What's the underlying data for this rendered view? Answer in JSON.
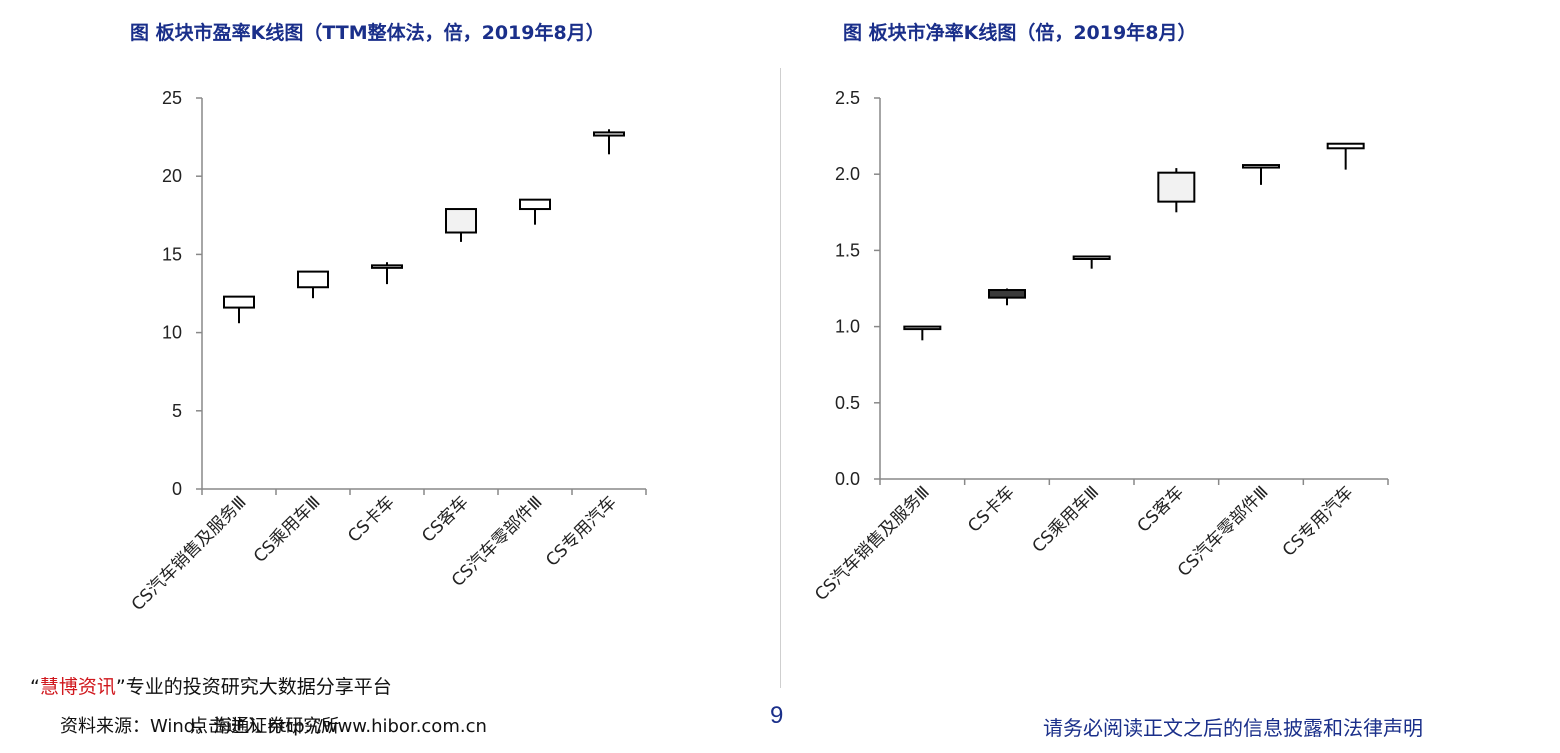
{
  "titles": {
    "left": "图 板块市盈率K线图（TTM整体法，倍，2019年8月）",
    "right": "图 板块市净率K线图（倍，2019年8月）"
  },
  "chart_data": [
    {
      "type": "candlestick",
      "ylim": [
        0,
        25
      ],
      "yticks": [
        "0",
        "5",
        "10",
        "15",
        "20",
        "25"
      ],
      "categories": [
        "CS汽车销售及服务Ⅲ",
        "CS乘用车Ⅲ",
        "CS卡车",
        "CS客车",
        "CS汽车零部件Ⅲ",
        "CS专用汽车"
      ],
      "candles": [
        {
          "open": 11.6,
          "close": 12.3,
          "high": 12.3,
          "low": 10.6,
          "fill": "#ffffff"
        },
        {
          "open": 12.9,
          "close": 13.9,
          "high": 13.9,
          "low": 12.2,
          "fill": "#ffffff"
        },
        {
          "open": 14.2,
          "close": 14.3,
          "high": 14.5,
          "low": 13.1,
          "fill": "#ffffff"
        },
        {
          "open": 16.4,
          "close": 17.9,
          "high": 17.9,
          "low": 15.8,
          "fill": "#f2f2f2"
        },
        {
          "open": 17.9,
          "close": 18.5,
          "high": 18.5,
          "low": 16.9,
          "fill": "#ffffff"
        },
        {
          "open": 22.6,
          "close": 22.8,
          "high": 23.0,
          "low": 21.4,
          "fill": "#ffffff"
        }
      ]
    },
    {
      "type": "candlestick",
      "ylim": [
        0,
        2.5
      ],
      "yticks": [
        "0.0",
        "0.5",
        "1.0",
        "1.5",
        "2.0",
        "2.5"
      ],
      "categories": [
        "CS汽车销售及服务Ⅲ",
        "CS卡车",
        "CS乘用车Ⅲ",
        "CS客车",
        "CS汽车零部件Ⅲ",
        "CS专用汽车"
      ],
      "candles": [
        {
          "open": 0.99,
          "close": 1.0,
          "high": 1.0,
          "low": 0.91,
          "fill": "#ffffff"
        },
        {
          "open": 1.19,
          "close": 1.24,
          "high": 1.25,
          "low": 1.14,
          "fill": "#3a3a3a"
        },
        {
          "open": 1.45,
          "close": 1.46,
          "high": 1.46,
          "low": 1.38,
          "fill": "#ffffff"
        },
        {
          "open": 1.82,
          "close": 2.01,
          "high": 2.04,
          "low": 1.75,
          "fill": "#f2f2f2"
        },
        {
          "open": 2.05,
          "close": 2.06,
          "high": 2.06,
          "low": 1.93,
          "fill": "#ffffff"
        },
        {
          "open": 2.17,
          "close": 2.2,
          "high": 2.2,
          "low": 2.03,
          "fill": "#ffffff"
        }
      ]
    }
  ],
  "footer": {
    "watermark_open_quote": "“",
    "watermark_brand": "慧博资讯",
    "watermark_rest": "”专业的投资研究大数据分享平台",
    "source": "资料来源：Wind，海通证券研究所",
    "url": "点击进入 http://www.hibor.com.cn",
    "page_number": "9",
    "disclaimer": "请务必阅读正文之后的信息披露和法律声明"
  }
}
